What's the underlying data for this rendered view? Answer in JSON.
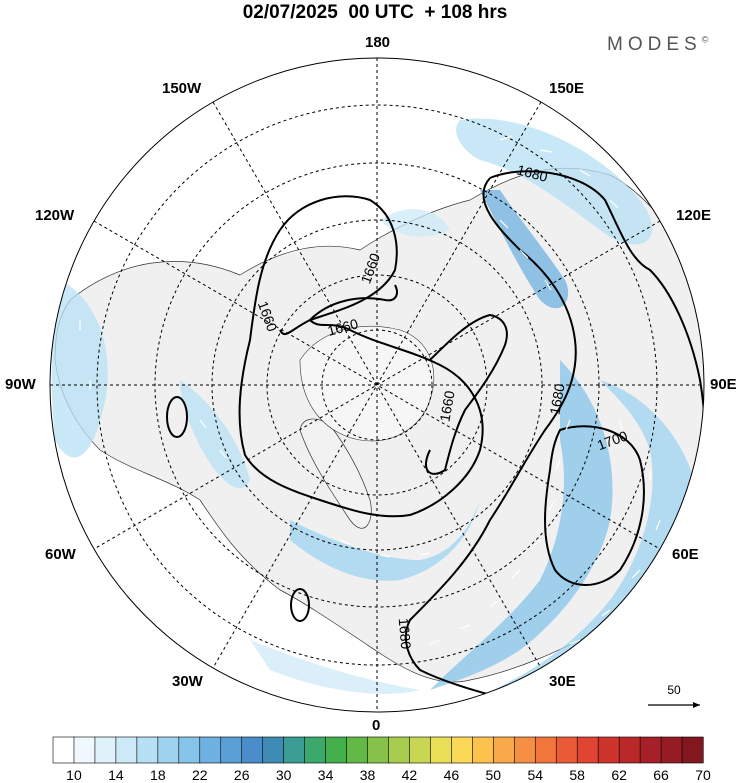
{
  "header": {
    "title": "02/07/2025  00 UTC  + 108 hrs",
    "brand": "MODES",
    "brand_mark": "©"
  },
  "map": {
    "longitude_labels": {
      "top": "180",
      "bottom": "0",
      "left": "90W",
      "right": "90E",
      "upper_left_150": "150W",
      "upper_left_120": "120W",
      "upper_right_150": "150E",
      "upper_right_120": "120E",
      "lower_left_60": "60W",
      "lower_left_30": "30W",
      "lower_right_60": "60E",
      "lower_right_30": "30E"
    },
    "contour_labels": [
      "1680",
      "1660",
      "1660",
      "1660",
      "1660",
      "1680",
      "1700",
      "1680"
    ],
    "reference_vector": "50"
  },
  "colorbar": {
    "labels": [
      "10",
      "14",
      "18",
      "22",
      "26",
      "30",
      "34",
      "38",
      "42",
      "46",
      "50",
      "54",
      "58",
      "62",
      "66",
      "70"
    ],
    "colors": [
      "#ffffff",
      "#eef8fd",
      "#dff2fb",
      "#cdeaf8",
      "#b7e0f5",
      "#9ed3f0",
      "#86c4ea",
      "#6fb2e1",
      "#5a9fd6",
      "#4a8dca",
      "#3e8cb5",
      "#3b9c93",
      "#3aa96b",
      "#44b04b",
      "#63b946",
      "#86c24a",
      "#a8cc4e",
      "#c9d653",
      "#e9df57",
      "#fbd957",
      "#fbc24e",
      "#f9a947",
      "#f68f41",
      "#f2753c",
      "#ec5b37",
      "#e04432",
      "#cf332e",
      "#bb282a",
      "#a82027",
      "#951b24",
      "#821720"
    ]
  }
}
